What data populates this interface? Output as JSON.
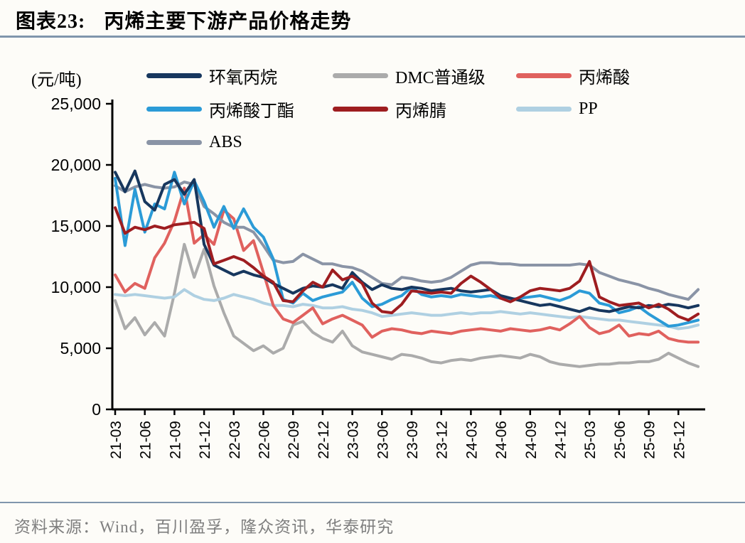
{
  "header": {
    "label": "图表23:",
    "title": "丙烯主要下游产品价格走势"
  },
  "footer": {
    "source": "资料来源：Wind，百川盈孚，隆众资讯，华泰研究"
  },
  "colors": {
    "divider": "#8096ac",
    "axis": "#000000",
    "source_text": "#7f7f7f"
  },
  "chart_data": {
    "type": "line",
    "title": "丙烯主要下游产品价格走势",
    "unit_label": "(元/吨)",
    "ylim": [
      0,
      25000
    ],
    "yticks": [
      "0",
      "5,000",
      "10,000",
      "15,000",
      "20,000",
      "25,000"
    ],
    "grid": false,
    "legend_position": "top",
    "x_tick_labels": [
      "21-03",
      "21-06",
      "21-09",
      "21-12",
      "22-03",
      "22-06",
      "22-09",
      "22-12",
      "23-03",
      "23-06",
      "23-09",
      "23-12",
      "24-03",
      "24-06",
      "24-09",
      "24-12",
      "25-03",
      "25-06",
      "25-09",
      "25-12"
    ],
    "months": [
      "21-03",
      "21-04",
      "21-05",
      "21-06",
      "21-07",
      "21-08",
      "21-09",
      "21-10",
      "21-11",
      "21-12",
      "22-01",
      "22-02",
      "22-03",
      "22-04",
      "22-05",
      "22-06",
      "22-07",
      "22-08",
      "22-09",
      "22-10",
      "22-11",
      "22-12",
      "23-01",
      "23-02",
      "23-03",
      "23-04",
      "23-05",
      "23-06",
      "23-07",
      "23-08",
      "23-09",
      "23-10",
      "23-11",
      "23-12",
      "24-01",
      "24-02",
      "24-03",
      "24-04",
      "24-05",
      "24-06",
      "24-07",
      "24-08",
      "24-09",
      "24-10",
      "24-11",
      "24-12",
      "25-01",
      "25-02",
      "25-03",
      "25-04",
      "25-05",
      "25-06",
      "25-07",
      "25-08",
      "25-09",
      "25-10",
      "25-11",
      "25-12",
      "26-01",
      "26-02"
    ],
    "series": [
      {
        "name": "环氧丙烷",
        "color": "#17375e",
        "values": [
          19400,
          17800,
          19500,
          17000,
          16300,
          18400,
          18800,
          17600,
          18800,
          13500,
          11800,
          11400,
          11000,
          11300,
          11000,
          10800,
          10300,
          9900,
          9500,
          9900,
          10100,
          10000,
          10200,
          9900,
          11200,
          10400,
          9800,
          10200,
          9900,
          9800,
          10000,
          9900,
          9700,
          9800,
          9900,
          9700,
          9600,
          9700,
          9800,
          9300,
          9100,
          8900,
          8700,
          8500,
          8600,
          8400,
          8200,
          8000,
          8300,
          8100,
          8000,
          8200,
          8400,
          8300,
          8500,
          8400,
          8600,
          8500,
          8300,
          8500
        ]
      },
      {
        "name": "DMC普通级",
        "color": "#ababab",
        "values": [
          8900,
          6600,
          7500,
          6100,
          7100,
          6000,
          9500,
          13500,
          10800,
          13100,
          10100,
          7900,
          6000,
          5400,
          4800,
          5200,
          4600,
          5000,
          6900,
          7200,
          6300,
          5800,
          5500,
          6400,
          5200,
          4700,
          4500,
          4300,
          4100,
          4500,
          4400,
          4200,
          3900,
          3800,
          4000,
          4100,
          4000,
          4200,
          4300,
          4400,
          4300,
          4200,
          4500,
          4300,
          3900,
          3700,
          3600,
          3500,
          3600,
          3700,
          3700,
          3800,
          3800,
          3900,
          3900,
          4100,
          4600,
          4200,
          3800,
          3500
        ]
      },
      {
        "name": "丙烯酸",
        "color": "#e0615e",
        "values": [
          11000,
          9600,
          10300,
          9900,
          12400,
          13600,
          15400,
          18100,
          13600,
          14300,
          13500,
          16300,
          15600,
          13000,
          13800,
          11200,
          8500,
          7400,
          7100,
          7700,
          8300,
          7000,
          7400,
          7700,
          7300,
          6900,
          5900,
          6400,
          6600,
          6500,
          6300,
          6200,
          6400,
          6300,
          6200,
          6400,
          6500,
          6600,
          6500,
          6400,
          6600,
          6500,
          6400,
          6500,
          6700,
          6500,
          7000,
          7600,
          6700,
          6200,
          6400,
          6900,
          6000,
          6200,
          6100,
          6400,
          5800,
          5600,
          5500,
          5500
        ]
      },
      {
        "name": "丙烯酸丁酯",
        "color": "#2b9bd7",
        "values": [
          18900,
          13400,
          18000,
          14500,
          16800,
          16400,
          19400,
          16800,
          18700,
          17000,
          14900,
          16600,
          14800,
          16400,
          14900,
          14100,
          12300,
          9000,
          8700,
          9500,
          8900,
          9200,
          9400,
          9600,
          10400,
          9100,
          8400,
          8600,
          9000,
          9300,
          10000,
          9400,
          9200,
          9300,
          9200,
          9400,
          9300,
          9200,
          9300,
          9100,
          9000,
          9100,
          9200,
          9300,
          9100,
          8900,
          9200,
          9700,
          9500,
          8700,
          8500,
          7900,
          8100,
          8400,
          7800,
          7300,
          6800,
          6900,
          7100,
          7300
        ]
      },
      {
        "name": "丙烯腈",
        "color": "#9e1d20",
        "values": [
          16500,
          14400,
          14900,
          14700,
          15000,
          14800,
          15100,
          15200,
          15300,
          14800,
          11900,
          12200,
          12500,
          12200,
          11600,
          10900,
          10400,
          8900,
          8800,
          9700,
          10400,
          10000,
          11400,
          10600,
          10900,
          10300,
          8700,
          8000,
          7900,
          8600,
          9700,
          9600,
          9500,
          9600,
          9500,
          10300,
          10900,
          10400,
          9800,
          9100,
          8800,
          9200,
          9700,
          9900,
          9800,
          9700,
          9900,
          10500,
          12100,
          9200,
          8800,
          8500,
          8600,
          8700,
          8300,
          8600,
          8200,
          7600,
          7300,
          7800
        ]
      },
      {
        "name": "PP",
        "color": "#afd0e2",
        "values": [
          9400,
          9300,
          9400,
          9300,
          9200,
          9100,
          9200,
          9800,
          9300,
          9000,
          8900,
          9100,
          9400,
          9200,
          9000,
          8700,
          8500,
          8500,
          8400,
          8600,
          8500,
          8300,
          8300,
          8400,
          8200,
          8100,
          7900,
          7600,
          7700,
          7800,
          7900,
          7800,
          7700,
          7700,
          7800,
          7900,
          7800,
          7900,
          7900,
          8000,
          7900,
          7800,
          7900,
          7800,
          7700,
          7600,
          7500,
          7600,
          7500,
          7400,
          7300,
          7300,
          7200,
          7100,
          7000,
          6900,
          6800,
          6600,
          6700,
          6900
        ]
      },
      {
        "name": "ABS",
        "color": "#8a94a6",
        "values": [
          18300,
          17800,
          18200,
          18400,
          18200,
          18100,
          18200,
          18600,
          18400,
          16600,
          16000,
          15300,
          14900,
          14900,
          14500,
          13400,
          12200,
          12000,
          12100,
          12700,
          12300,
          11900,
          11900,
          11700,
          11600,
          11300,
          10800,
          10300,
          10200,
          10800,
          10700,
          10500,
          10400,
          10500,
          10800,
          11300,
          11800,
          12000,
          12000,
          11900,
          11900,
          11800,
          11800,
          11800,
          11800,
          11800,
          11800,
          11900,
          11800,
          11200,
          10900,
          10600,
          10400,
          10200,
          9900,
          9700,
          9400,
          9200,
          9000,
          9800
        ]
      }
    ]
  }
}
